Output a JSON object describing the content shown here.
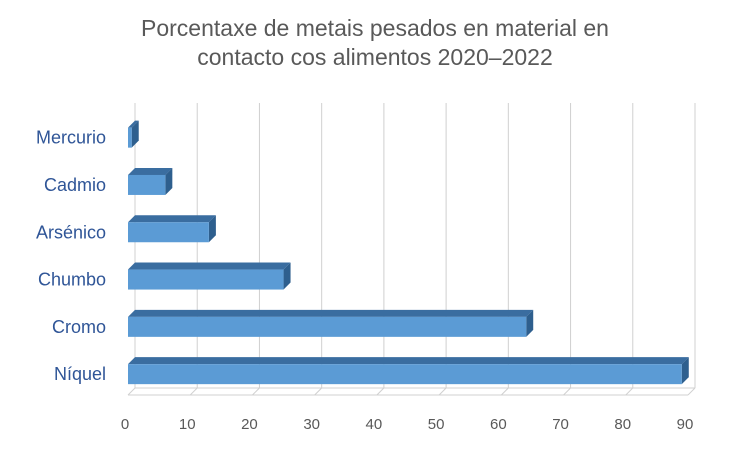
{
  "chart_data": {
    "type": "bar",
    "orientation": "horizontal",
    "style": "3d-bar",
    "title_lines": [
      "Porcentaxe de metais pesados en material en",
      "contacto cos alimentos 2020–2022"
    ],
    "categories": [
      "Mercurio",
      "Cadmio",
      "Arsénico",
      "Chumbo",
      "Cromo",
      "Níquel"
    ],
    "values": [
      0.6,
      6,
      13,
      25,
      64,
      89
    ],
    "xlim": [
      0,
      90
    ],
    "xticks": [
      0,
      10,
      20,
      30,
      40,
      50,
      60,
      70,
      80,
      90
    ],
    "grid": true,
    "legend": "none",
    "colors": {
      "bar_front": "#5b9bd5",
      "bar_top": "#3a6da0",
      "bar_side": "#2e5f8e",
      "category_label": "#2f5597",
      "tick_label": "#595959",
      "title": "#595959",
      "grid": "#d0d0d0"
    }
  }
}
